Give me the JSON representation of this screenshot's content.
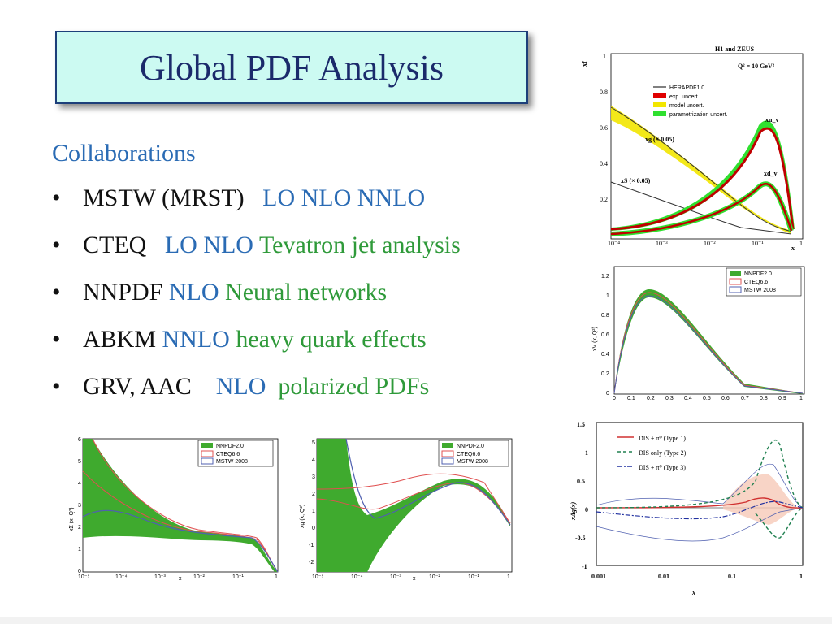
{
  "slide": {
    "title": "Global PDF Analysis",
    "heading": "Collaborations",
    "bullets": [
      {
        "name": "MSTW (MRST)",
        "orders": "LO NLO NNLO",
        "note": ""
      },
      {
        "name": "CTEQ",
        "orders": "LO NLO",
        "note": "Tevatron jet analysis"
      },
      {
        "name": "NNPDF",
        "orders": "NLO",
        "note": "Neural networks"
      },
      {
        "name": "ABKM",
        "orders": "NNLO",
        "note": "heavy quark effects"
      },
      {
        "name": "GRV, AAC",
        "orders": "NLO",
        "note": "polarized PDFs"
      }
    ],
    "bullet_char": "•"
  },
  "fig_h1": {
    "title": "H1 and ZEUS",
    "q2": "Q² = 10 GeV²",
    "ylabel": "xf",
    "xlabel": "x",
    "legend": [
      "HERAPDF1.0",
      "exp. uncert.",
      "model uncert.",
      "parametrization uncert."
    ],
    "curve_labels": [
      "xu_v",
      "xd_v",
      "xg (× 0.05)",
      "xS (× 0.05)"
    ],
    "yticks": [
      "1",
      "0.8",
      "0.6",
      "0.4",
      "0.2"
    ],
    "xticks": [
      "10⁻⁴",
      "10⁻³",
      "10⁻²",
      "10⁻¹",
      "1"
    ]
  },
  "fig_xv": {
    "ylabel": "xV (x, Q²)",
    "xlabel": "x",
    "legend": [
      "NNPDF2.0",
      "CTEQ6.6",
      "MSTW 2008"
    ],
    "yticks": [
      "1.2",
      "1",
      "0.8",
      "0.6",
      "0.4",
      "0.2",
      "0"
    ],
    "xticks": [
      "0",
      "0.1",
      "0.2",
      "0.3",
      "0.4",
      "0.5",
      "0.6",
      "0.7",
      "0.8",
      "0.9",
      "1"
    ]
  },
  "fig_sigma": {
    "ylabel": "xΣ (x, Q²)",
    "xlabel": "x",
    "legend": [
      "NNPDF2.0",
      "CTEQ6.6",
      "MSTW 2008"
    ],
    "yticks": [
      "6",
      "5",
      "4",
      "3",
      "2",
      "1",
      "0"
    ],
    "xticks": [
      "10⁻⁵",
      "10⁻⁴",
      "10⁻³",
      "10⁻²",
      "10⁻¹",
      "1"
    ]
  },
  "fig_xg": {
    "ylabel": "xg (x, Q²)",
    "xlabel": "x",
    "legend": [
      "NNPDF2.0",
      "CTEQ6.6",
      "MSTW 2008"
    ],
    "yticks": [
      "5",
      "4",
      "3",
      "2",
      "1",
      "0",
      "-1",
      "-2"
    ],
    "xticks": [
      "10⁻⁵",
      "10⁻⁴",
      "10⁻³",
      "10⁻²",
      "10⁻¹",
      "1"
    ]
  },
  "fig_dg": {
    "ylabel": "xΔg(x)",
    "xlabel": "x",
    "legend": [
      "DIS + π⁰ (Type 1)",
      "DIS only (Type 2)",
      "DIS + π⁰ (Type 3)"
    ],
    "yticks": [
      "1.5",
      "1",
      "0.5",
      "0",
      "-0.5",
      "-1"
    ],
    "xticks": [
      "0.001",
      "0.01",
      "0.1",
      "1"
    ]
  },
  "colors": {
    "title_bg": "#ccfaf2",
    "title_text": "#1b2a6b",
    "blue": "#2a6bb4",
    "green": "#2f9a3a",
    "nnpdf_green": "#3faa2e",
    "cteq_red": "#e05050",
    "mstw_blue": "#5060b0"
  }
}
